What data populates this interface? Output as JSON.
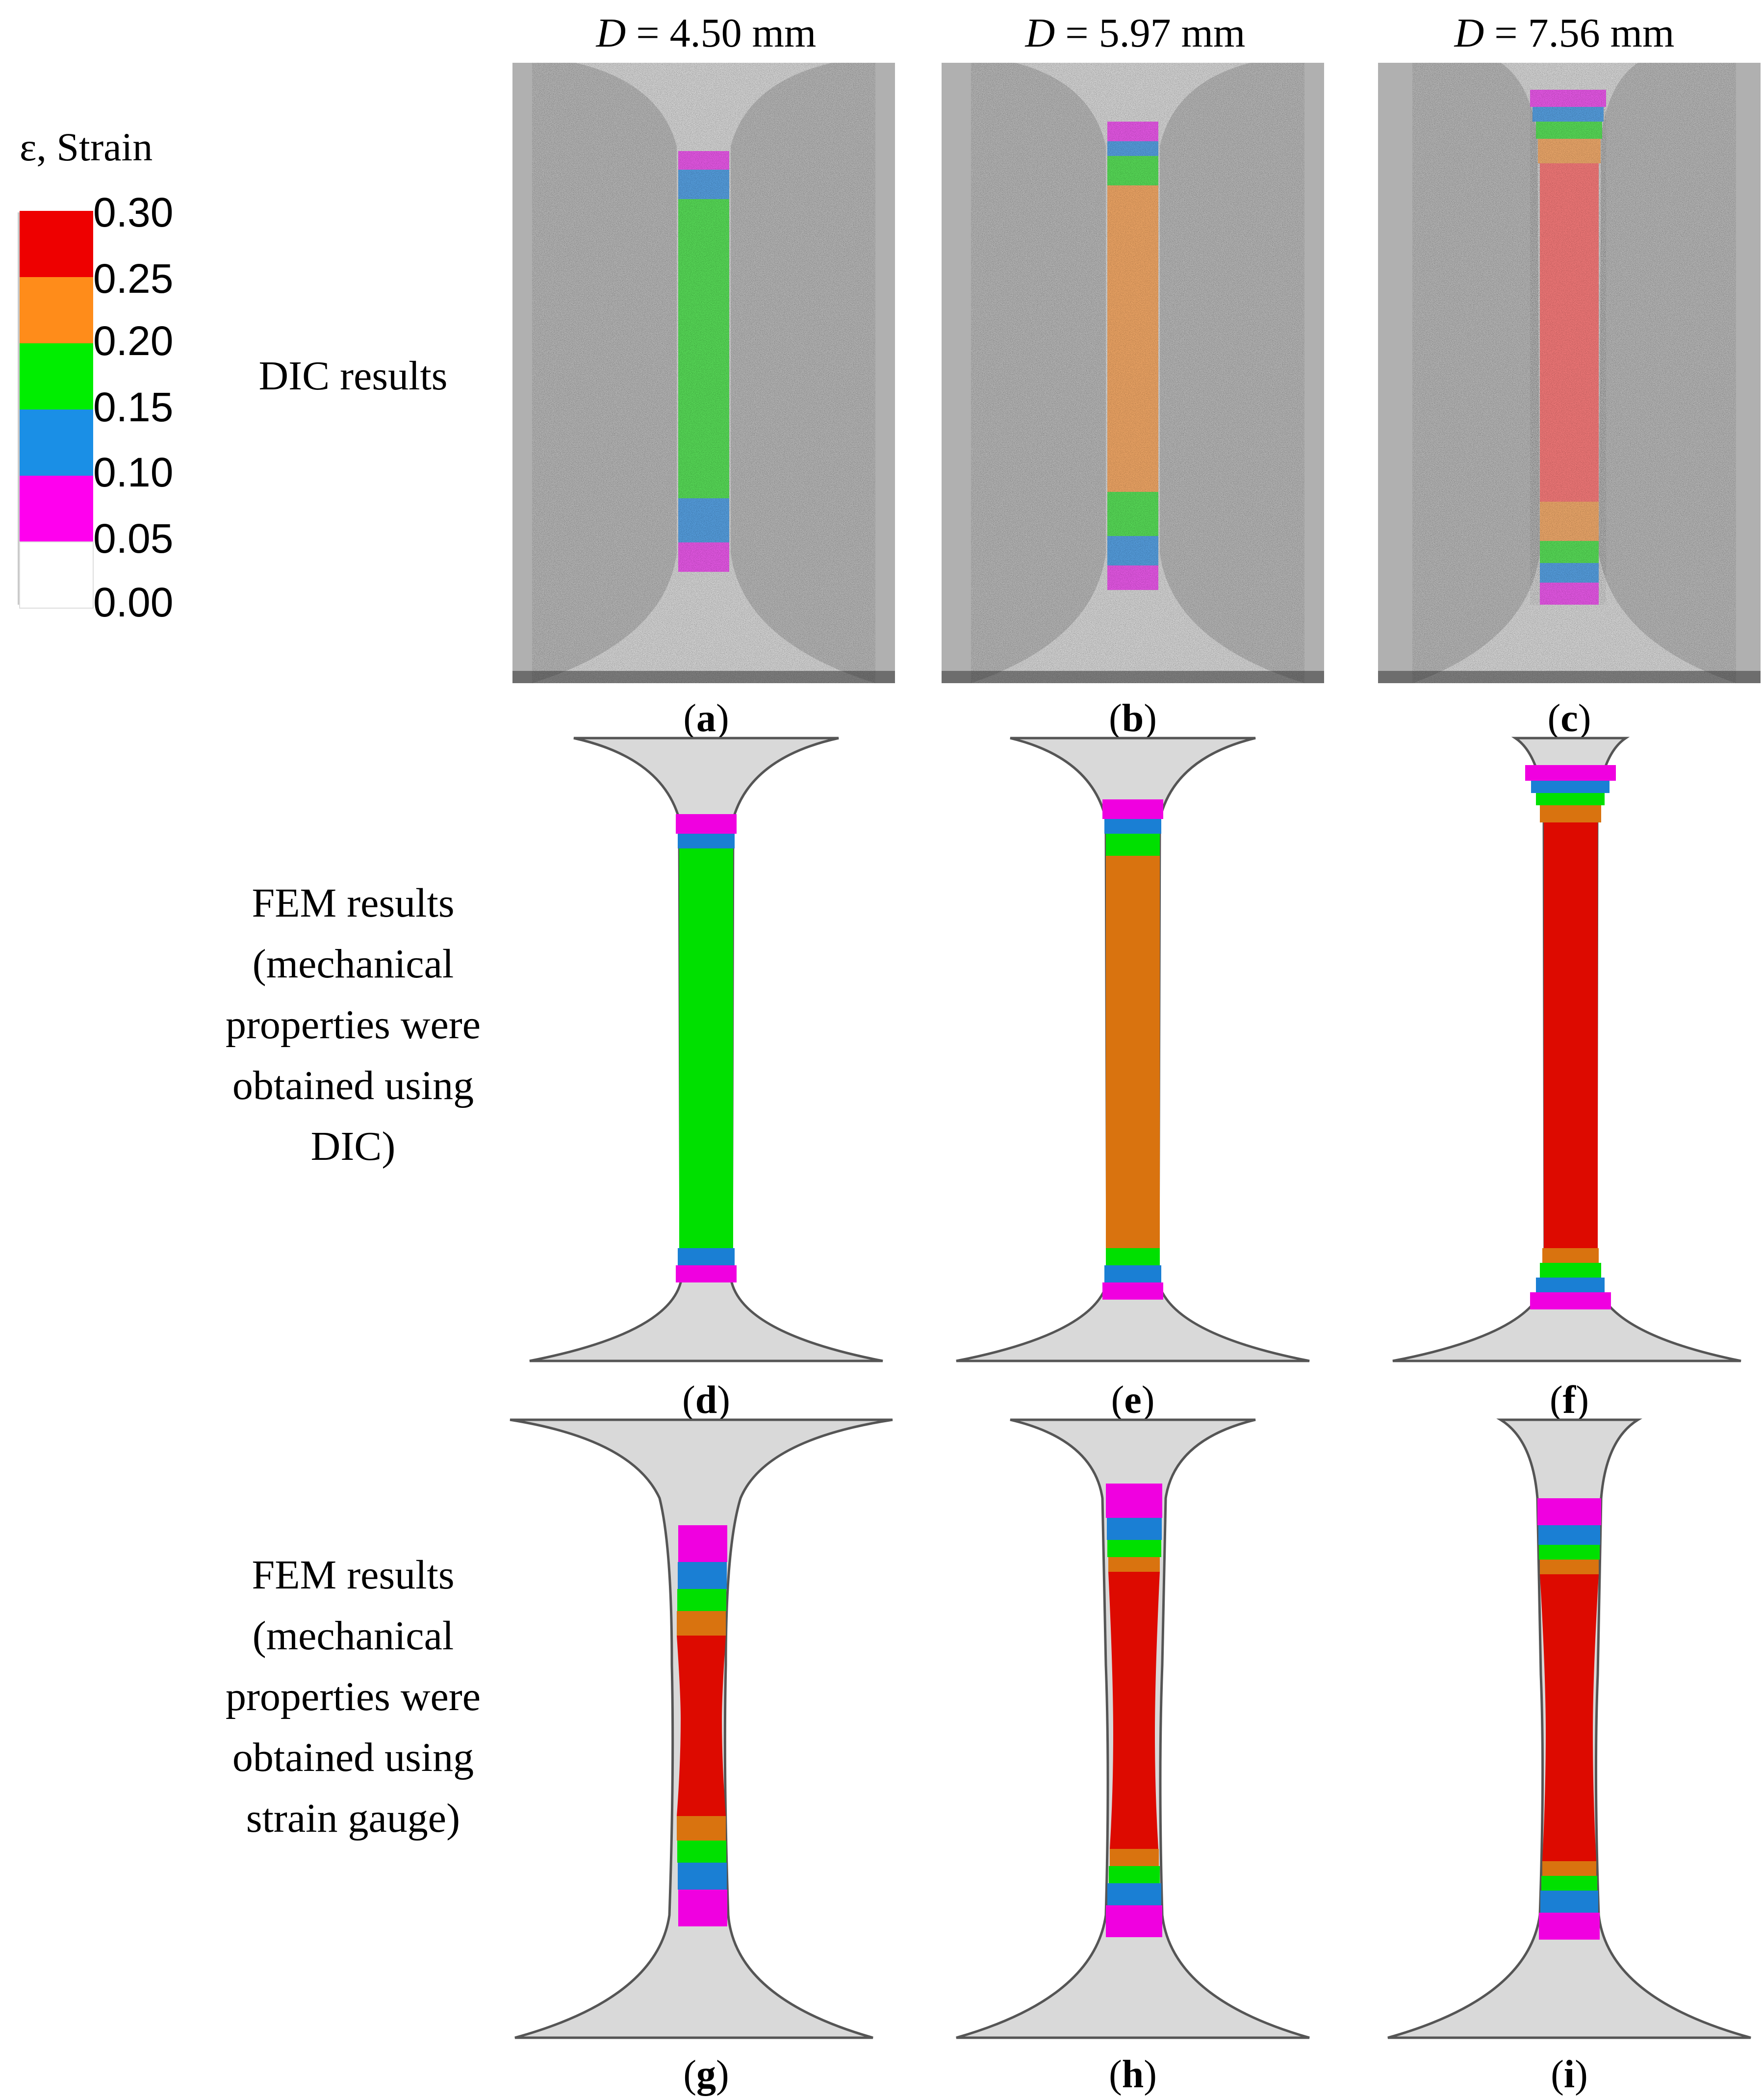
{
  "legend": {
    "title": "ε, Strain",
    "ticks": [
      "0.30",
      "0.25",
      "0.20",
      "0.15",
      "0.10",
      "0.05",
      "0.00"
    ],
    "bands": [
      {
        "range": "0.25–0.30",
        "color": "#ee0000"
      },
      {
        "range": "0.20–0.25",
        "color": "#ff8c1a"
      },
      {
        "range": "0.15–0.20",
        "color": "#00ee00"
      },
      {
        "range": "0.10–0.15",
        "color": "#1a8fe6"
      },
      {
        "range": "0.05–0.10",
        "color": "#ff00ee"
      },
      {
        "range": "0.00–0.05",
        "color": "#ffffff"
      }
    ]
  },
  "columns": [
    {
      "var": "D",
      "value": "= 4.50 mm"
    },
    {
      "var": "D",
      "value": "= 5.97 mm"
    },
    {
      "var": "D",
      "value": "= 7.56 mm"
    }
  ],
  "rows": [
    {
      "label": "DIC results"
    },
    {
      "label": "FEM results (mechanical properties were obtained using DIC)"
    },
    {
      "label": "FEM results (mechanical properties were obtained using strain gauge)"
    }
  ],
  "panels": [
    "a",
    "b",
    "c",
    "d",
    "e",
    "f",
    "g",
    "h",
    "i"
  ],
  "colors": {
    "dic_background": "#a4a4a4",
    "fem_body": "#d9d9d9",
    "fem_red": "#dd0a00",
    "fem_orange": "#d9730f",
    "fem_green": "#00e000",
    "fem_blue": "#1a7fd4",
    "fem_magenta": "#f000e0"
  }
}
